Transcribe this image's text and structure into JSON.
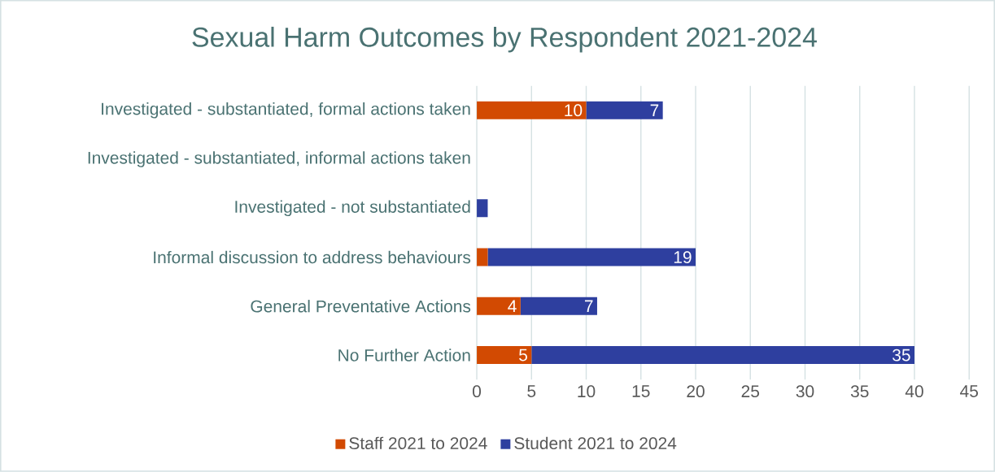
{
  "chart_data": {
    "type": "bar",
    "orientation": "horizontal",
    "stacked": true,
    "title": "Sexual Harm Outcomes by Respondent 2021-2024",
    "categories": [
      "Investigated - substantiated, formal actions taken",
      "Investigated - substantiated, informal actions taken",
      "Investigated - not substantiated",
      "Informal discussion to address behaviours",
      "General Preventative Actions",
      "No Further Action"
    ],
    "series": [
      {
        "name": "Staff 2021 to 2024",
        "color": "#d24a02",
        "values": [
          10,
          0,
          0,
          1,
          4,
          5
        ],
        "value_labels": [
          "10",
          null,
          null,
          null,
          "4",
          "5"
        ]
      },
      {
        "name": "Student 2021 to 2024",
        "color": "#2e3f9f",
        "values": [
          7,
          0,
          1,
          19,
          7,
          35
        ],
        "value_labels": [
          "7",
          null,
          null,
          "19",
          "7",
          "35"
        ]
      }
    ],
    "xlim": [
      0,
      45
    ],
    "xticks": [
      0,
      5,
      10,
      15,
      20,
      25,
      30,
      35,
      40,
      45
    ],
    "grid": "x",
    "legend": "bottom"
  }
}
